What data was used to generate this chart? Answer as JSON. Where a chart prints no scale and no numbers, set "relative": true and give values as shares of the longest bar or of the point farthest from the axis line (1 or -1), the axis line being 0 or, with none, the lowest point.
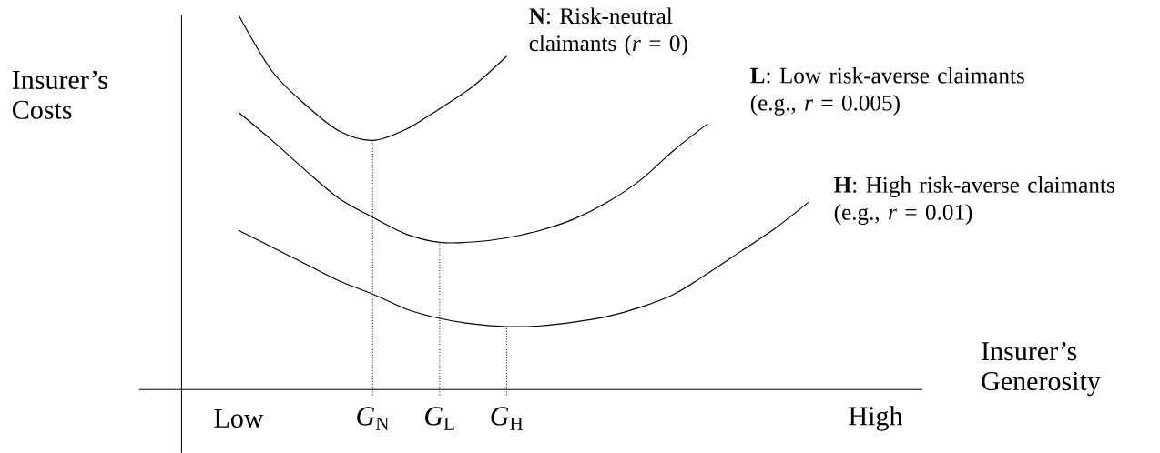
{
  "chart_data": {
    "type": "line",
    "relative": true,
    "xlabel": "Insurer’s Generosity",
    "ylabel": "Insurer’s Costs",
    "categories": [
      "Low",
      null,
      null,
      null,
      "*G*$_{N}$",
      null,
      "*G*$_{L}$",
      null,
      "*G*$_{H}$",
      null,
      null,
      null,
      null,
      null,
      null,
      null,
      null,
      null,
      null,
      "High"
    ],
    "tick_labels": "x",
    "legend": false,
    "grid": false,
    "marker": "none",
    "line_style": "solid",
    "series": [
      {
        "name": "**N**: Risk-neutral claimants (*r* = 0)",
        "color": "#000000",
        "values": [
          1.0,
          0.85,
          0.76,
          0.69,
          0.665,
          0.695,
          0.75,
          0.81,
          0.89,
          null,
          null,
          null,
          null,
          null,
          null,
          null,
          null,
          null,
          null,
          null
        ]
      },
      {
        "name": "**L**: Low risk-averse claimants (e.g., *r* = 0.005)",
        "color": "#000000",
        "values": [
          0.74,
          0.665,
          0.585,
          0.51,
          0.46,
          0.415,
          0.393,
          0.394,
          0.405,
          0.425,
          0.455,
          0.5,
          0.56,
          0.64,
          0.71,
          null,
          null,
          null,
          null,
          null
        ]
      },
      {
        "name": "**H**: High risk-averse claimants (e.g., *r* = 0.01)",
        "color": "#000000",
        "values": [
          0.425,
          0.38,
          0.335,
          0.29,
          0.255,
          0.215,
          0.19,
          0.175,
          0.168,
          0.17,
          0.18,
          0.195,
          0.22,
          0.255,
          0.31,
          0.37,
          0.43,
          0.5,
          null,
          null
        ]
      }
    ],
    "ref_lines": [
      {
        "axis": "x",
        "value": "*G*$_{N}$",
        "color": "#000000",
        "line_style": "dotted"
      },
      {
        "axis": "x",
        "value": "*G*$_{L}$",
        "color": "#000000",
        "line_style": "dotted"
      },
      {
        "axis": "x",
        "value": "*G*$_{H}$",
        "color": "#000000",
        "line_style": "dotted"
      }
    ]
  }
}
